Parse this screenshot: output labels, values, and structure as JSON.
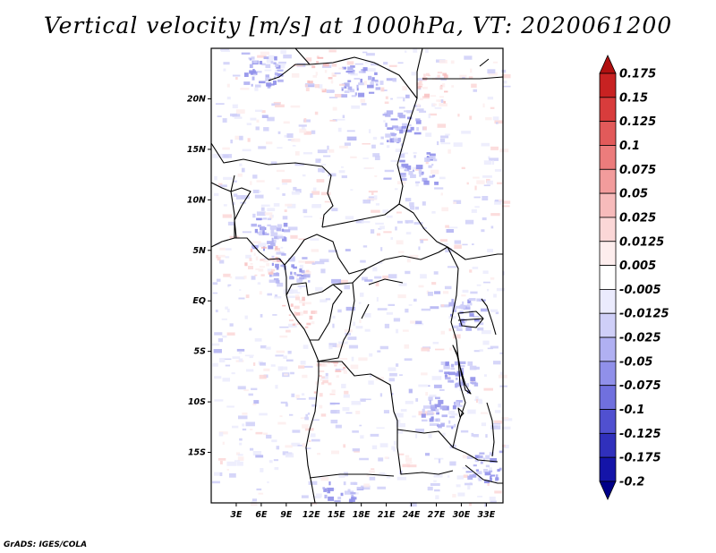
{
  "chart_data": {
    "type": "heatmap",
    "title": "Vertical velocity [m/s] at 1000hPa, VT: 2020061200",
    "variable": "Vertical velocity",
    "units": "m/s",
    "level": "1000hPa",
    "valid_time": "2020061200",
    "x_axis": {
      "range": [
        0,
        35
      ],
      "ticks": [
        3,
        6,
        9,
        12,
        15,
        18,
        21,
        24,
        27,
        30,
        33
      ],
      "tick_labels": [
        "3E",
        "6E",
        "9E",
        "12E",
        "15E",
        "18E",
        "21E",
        "24E",
        "27E",
        "30E",
        "33E"
      ]
    },
    "y_axis": {
      "range": [
        -20,
        25
      ],
      "ticks": [
        20,
        15,
        10,
        5,
        0,
        -5,
        -10,
        -15
      ],
      "tick_labels": [
        "20N",
        "15N",
        "10N",
        "5N",
        "EQ",
        "5S",
        "10S",
        "15S"
      ]
    },
    "colorbar": {
      "levels": [
        "0.175",
        "0.15",
        "0.125",
        "0.1",
        "0.075",
        "0.05",
        "0.025",
        "0.0125",
        "0.005",
        "-0.005",
        "-0.0125",
        "-0.025",
        "-0.05",
        "-0.075",
        "-0.1",
        "-0.125",
        "-0.175",
        "-0.2"
      ],
      "colors": [
        "#b01010",
        "#c82222",
        "#d83c3c",
        "#e25a5a",
        "#ec7c7c",
        "#f29c9c",
        "#f7bbbb",
        "#fbd7d7",
        "#fdeded",
        "#ffffff",
        "#ebebfd",
        "#cfcff8",
        "#b0b0f2",
        "#9090ea",
        "#7070de",
        "#5050d0",
        "#3030bc",
        "#1414a8",
        "#000088"
      ]
    }
  },
  "credit": "GrADS: IGES/COLA"
}
